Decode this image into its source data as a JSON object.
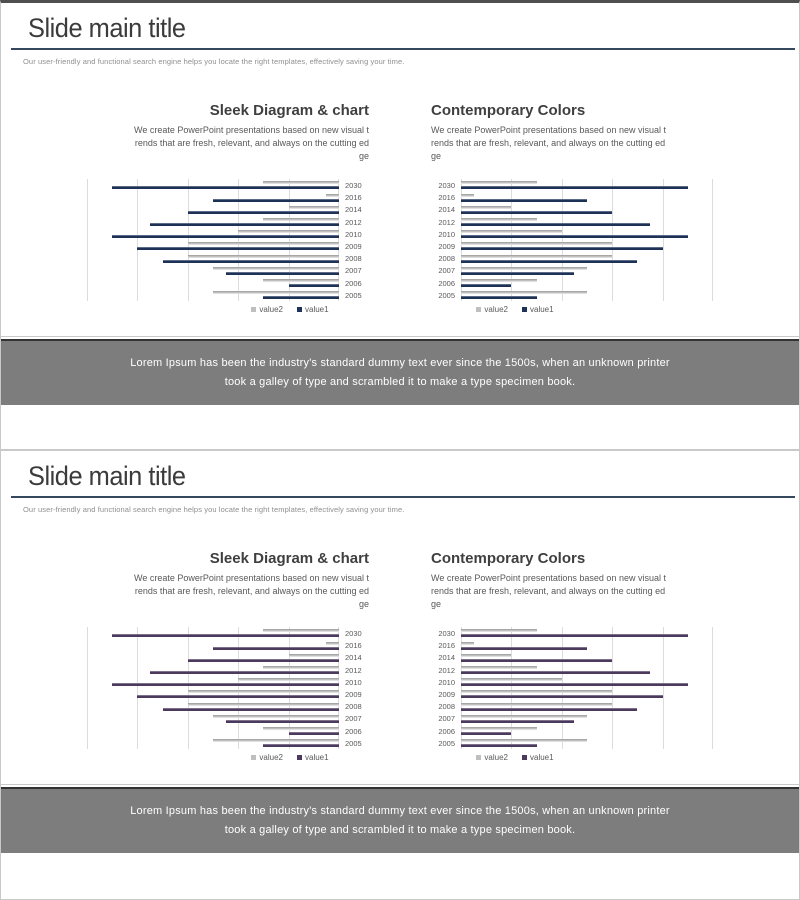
{
  "slides": [
    {
      "title": "Slide main title",
      "subtitle": "Our user-friendly and functional search engine helps you locate the right templates, effectively saving your time.",
      "sections": [
        {
          "title": "Sleek Diagram & chart",
          "description_lines": [
            "We create PowerPoint presentations based on new visual t",
            "rends that are fresh, relevant, and always on the cutting ed",
            "ge"
          ]
        },
        {
          "title": "Contemporary Colors",
          "description_lines": [
            "We create PowerPoint presentations based on new visual t",
            "rends that are fresh, relevant, and always on the cutting ed",
            "ge"
          ]
        }
      ],
      "banner_lines": [
        "Lorem Ipsum has been the industry's standard dummy text ever since the 1500s, when an unknown printer",
        "took a galley of type and scrambled it to make a type specimen book."
      ],
      "accent_color": "#1e3257"
    },
    {
      "title": "Slide main title",
      "subtitle": "Our user-friendly and functional search engine helps you locate the right templates, effectively saving your time.",
      "sections": [
        {
          "title": "Sleek Diagram & chart",
          "description_lines": [
            "We create PowerPoint presentations based on new visual t",
            "rends that are fresh, relevant, and always on the cutting ed",
            "ge"
          ]
        },
        {
          "title": "Contemporary Colors",
          "description_lines": [
            "We create PowerPoint presentations based on new visual t",
            "rends that are fresh, relevant, and always on the cutting ed",
            "ge"
          ]
        }
      ],
      "banner_lines": [
        "Lorem Ipsum has been the industry's standard dummy text ever since the 1500s, when an unknown printer",
        "took a galley of type and scrambled it to make a type specimen book."
      ],
      "accent_color": "#4b3a5e"
    }
  ],
  "chart_data": [
    {
      "id": "slide1-sleek-diagram",
      "type": "bar",
      "orientation": "horizontal",
      "direction": "right-to-left",
      "categories": [
        "2030",
        "2016",
        "2014",
        "2012",
        "2010",
        "2009",
        "2008",
        "2007",
        "2006",
        "2005"
      ],
      "series": [
        {
          "name": "value2",
          "color": "#bfbfbf",
          "values": [
            3,
            0.5,
            2,
            3,
            4,
            6,
            6,
            5,
            3,
            5
          ]
        },
        {
          "name": "value1",
          "color": "#1e3257",
          "values": [
            9,
            5,
            6,
            7.5,
            9,
            8,
            7,
            4.5,
            2,
            3
          ]
        }
      ],
      "xlim": [
        0,
        10
      ],
      "gridline_interval": 2,
      "grid": true,
      "legend_position": "bottom"
    },
    {
      "id": "slide1-contemporary-colors",
      "type": "bar",
      "orientation": "horizontal",
      "direction": "left-to-right",
      "categories": [
        "2030",
        "2016",
        "2014",
        "2012",
        "2010",
        "2009",
        "2008",
        "2007",
        "2006",
        "2005"
      ],
      "series": [
        {
          "name": "value2",
          "color": "#bfbfbf",
          "values": [
            3,
            0.5,
            2,
            3,
            4,
            6,
            6,
            5,
            3,
            5
          ]
        },
        {
          "name": "value1",
          "color": "#1e3257",
          "values": [
            9,
            5,
            6,
            7.5,
            9,
            8,
            7,
            4.5,
            2,
            3
          ]
        }
      ],
      "xlim": [
        0,
        10
      ],
      "gridline_interval": 2,
      "grid": true,
      "legend_position": "bottom"
    },
    {
      "id": "slide2-sleek-diagram",
      "type": "bar",
      "orientation": "horizontal",
      "direction": "right-to-left",
      "categories": [
        "2030",
        "2016",
        "2014",
        "2012",
        "2010",
        "2009",
        "2008",
        "2007",
        "2006",
        "2005"
      ],
      "series": [
        {
          "name": "value2",
          "color": "#bfbfbf",
          "values": [
            3,
            0.5,
            2,
            3,
            4,
            6,
            6,
            5,
            3,
            5
          ]
        },
        {
          "name": "value1",
          "color": "#4b3a5e",
          "values": [
            9,
            5,
            6,
            7.5,
            9,
            8,
            7,
            4.5,
            2,
            3
          ]
        }
      ],
      "xlim": [
        0,
        10
      ],
      "gridline_interval": 2,
      "grid": true,
      "legend_position": "bottom"
    },
    {
      "id": "slide2-contemporary-colors",
      "type": "bar",
      "orientation": "horizontal",
      "direction": "left-to-right",
      "categories": [
        "2030",
        "2016",
        "2014",
        "2012",
        "2010",
        "2009",
        "2008",
        "2007",
        "2006",
        "2005"
      ],
      "series": [
        {
          "name": "value2",
          "color": "#bfbfbf",
          "values": [
            3,
            0.5,
            2,
            3,
            4,
            6,
            6,
            5,
            3,
            5
          ]
        },
        {
          "name": "value1",
          "color": "#4b3a5e",
          "values": [
            9,
            5,
            6,
            7.5,
            9,
            8,
            7,
            4.5,
            2,
            3
          ]
        }
      ],
      "xlim": [
        0,
        10
      ],
      "gridline_interval": 2,
      "grid": true,
      "legend_position": "bottom"
    }
  ]
}
